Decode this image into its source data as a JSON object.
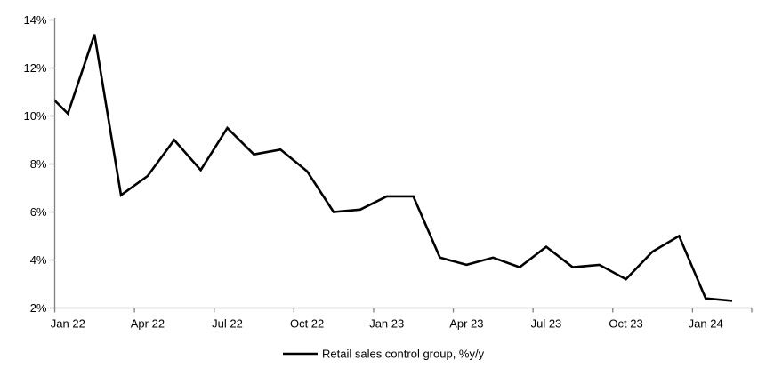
{
  "page": {
    "background": "#ffffff"
  },
  "chart_data": {
    "type": "line",
    "title": "",
    "xlabel": "",
    "ylabel": "",
    "x": [
      "Dec 21",
      "Jan 22",
      "Feb 22",
      "Mar 22",
      "Apr 22",
      "May 22",
      "Jun 22",
      "Jul 22",
      "Aug 22",
      "Sep 22",
      "Oct 22",
      "Nov 22",
      "Dec 22",
      "Jan 23",
      "Feb 23",
      "Mar 23",
      "Apr 23",
      "May 23",
      "Jun 23",
      "Jul 23",
      "Aug 23",
      "Sep 23",
      "Oct 23",
      "Nov 23",
      "Dec 23",
      "Jan 24",
      "Feb 24"
    ],
    "series": [
      {
        "name": "Retail sales control group, %y/y",
        "color": "#000000",
        "values": [
          11.2,
          10.1,
          13.4,
          6.7,
          7.5,
          9.0,
          7.75,
          9.5,
          8.4,
          8.6,
          7.7,
          6.0,
          6.1,
          6.65,
          6.65,
          4.1,
          3.8,
          4.1,
          3.7,
          4.55,
          3.7,
          3.8,
          3.2,
          4.35,
          5.0,
          2.4,
          2.3
        ]
      }
    ],
    "first_point_clipped_at_left_axis": true,
    "ylim": [
      2,
      14
    ],
    "ytick_step": 2,
    "yticklabels": [
      "2%",
      "4%",
      "6%",
      "8%",
      "10%",
      "12%",
      "14%"
    ],
    "xticklabels": [
      "Jan 22",
      "Apr 22",
      "Jul 22",
      "Oct 22",
      "Jan 23",
      "Apr 23",
      "Jul 23",
      "Oct 23",
      "Jan 24"
    ],
    "xtick_interval_months": 3,
    "grid": false,
    "legend_position": "bottom-center",
    "axis_color": "#808080",
    "text_color": "#000000"
  }
}
